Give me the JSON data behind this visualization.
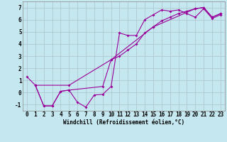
{
  "xlabel": "Windchill (Refroidissement éolien,°C)",
  "xlim": [
    -0.5,
    23.5
  ],
  "ylim": [
    -1.5,
    7.5
  ],
  "xticks": [
    0,
    1,
    2,
    3,
    4,
    5,
    6,
    7,
    8,
    9,
    10,
    11,
    12,
    13,
    14,
    15,
    16,
    17,
    18,
    19,
    20,
    21,
    22,
    23
  ],
  "yticks": [
    -1,
    0,
    1,
    2,
    3,
    4,
    5,
    6,
    7
  ],
  "bg_color": "#c5e8f0",
  "line_color": "#990099",
  "grid_color": "#b0c8d0",
  "line1_x": [
    0,
    1,
    2,
    3,
    4,
    5,
    6,
    7,
    8,
    9,
    10,
    11,
    12,
    13,
    14,
    15,
    16,
    17,
    18,
    19,
    20,
    21,
    22,
    23
  ],
  "line1_y": [
    1.3,
    0.6,
    -1.1,
    -1.1,
    0.1,
    0.2,
    -0.8,
    -1.2,
    -0.2,
    -0.15,
    0.5,
    4.9,
    4.7,
    4.7,
    6.0,
    6.4,
    6.8,
    6.7,
    6.8,
    6.5,
    6.2,
    6.9,
    6.1,
    6.4
  ],
  "line2_x": [
    1,
    2,
    3,
    4,
    5,
    9,
    10,
    11,
    12,
    13,
    14,
    15,
    16,
    17,
    18,
    19,
    20,
    21,
    22,
    23
  ],
  "line2_y": [
    0.6,
    -1.1,
    -1.1,
    0.1,
    0.2,
    0.5,
    2.7,
    3.0,
    3.5,
    4.0,
    4.9,
    5.4,
    5.9,
    6.2,
    6.5,
    6.7,
    6.9,
    7.0,
    6.2,
    6.5
  ],
  "line3_x": [
    1,
    5,
    10,
    15,
    20,
    21,
    22,
    23
  ],
  "line3_y": [
    0.6,
    0.6,
    2.7,
    5.4,
    6.9,
    7.0,
    6.2,
    6.5
  ],
  "tick_fontsize": 5.5,
  "xlabel_fontsize": 5.5,
  "marker_size": 2.0,
  "line_width": 0.8
}
